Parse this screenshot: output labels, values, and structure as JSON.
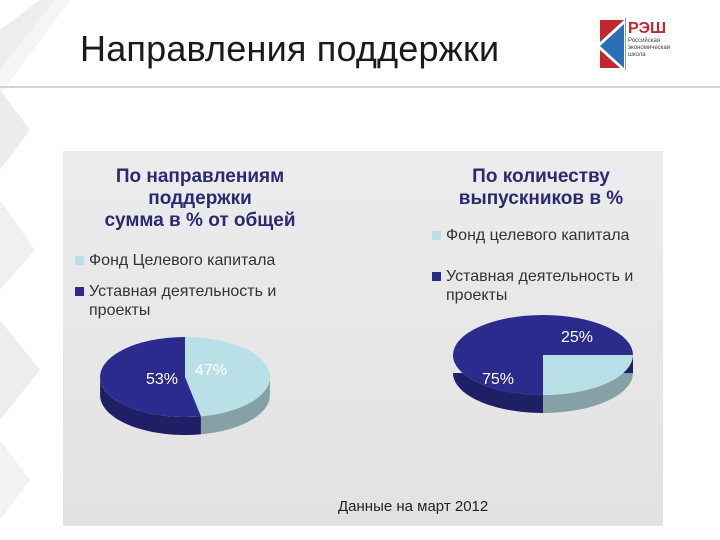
{
  "slide": {
    "title": "Направления поддержки",
    "footnote": "Данные на март 2012"
  },
  "logo": {
    "name": "РЭШ",
    "subtitle": [
      "Российская",
      "экономическая",
      "школа"
    ]
  },
  "colors": {
    "light_slice": "#b9e0e7",
    "dark_slice": "#2b2b8e",
    "light_label": "#ffffff",
    "dark_label": "#ffffff",
    "title": "#2a2a72",
    "panel": "#e6e6e6"
  },
  "chart_data": [
    {
      "type": "pie",
      "title": [
        "По направлениям",
        "поддержки",
        "сумма в % от общей"
      ],
      "legend_placement": "top",
      "categories": [
        "Фонд Целевого капитала",
        "Уставная деятельность и проекты"
      ],
      "legend_lines": [
        [
          "Фонд Целевого капитала"
        ],
        [
          "Уставная деятельность и",
          "проекты"
        ]
      ],
      "values": [
        47,
        53
      ],
      "labels": [
        "47%",
        "53%"
      ]
    },
    {
      "type": "pie",
      "title": [
        "По количеству",
        "выпускников в %"
      ],
      "legend_placement": "top",
      "categories": [
        "Фонд целевого капитала",
        "Уставная деятельность и проекты"
      ],
      "legend_lines": [
        [
          "Фонд целевого капитала"
        ],
        [
          "Уставная деятельность и",
          "проекты"
        ]
      ],
      "values": [
        25,
        75
      ],
      "labels": [
        "25%",
        "75%"
      ]
    }
  ]
}
